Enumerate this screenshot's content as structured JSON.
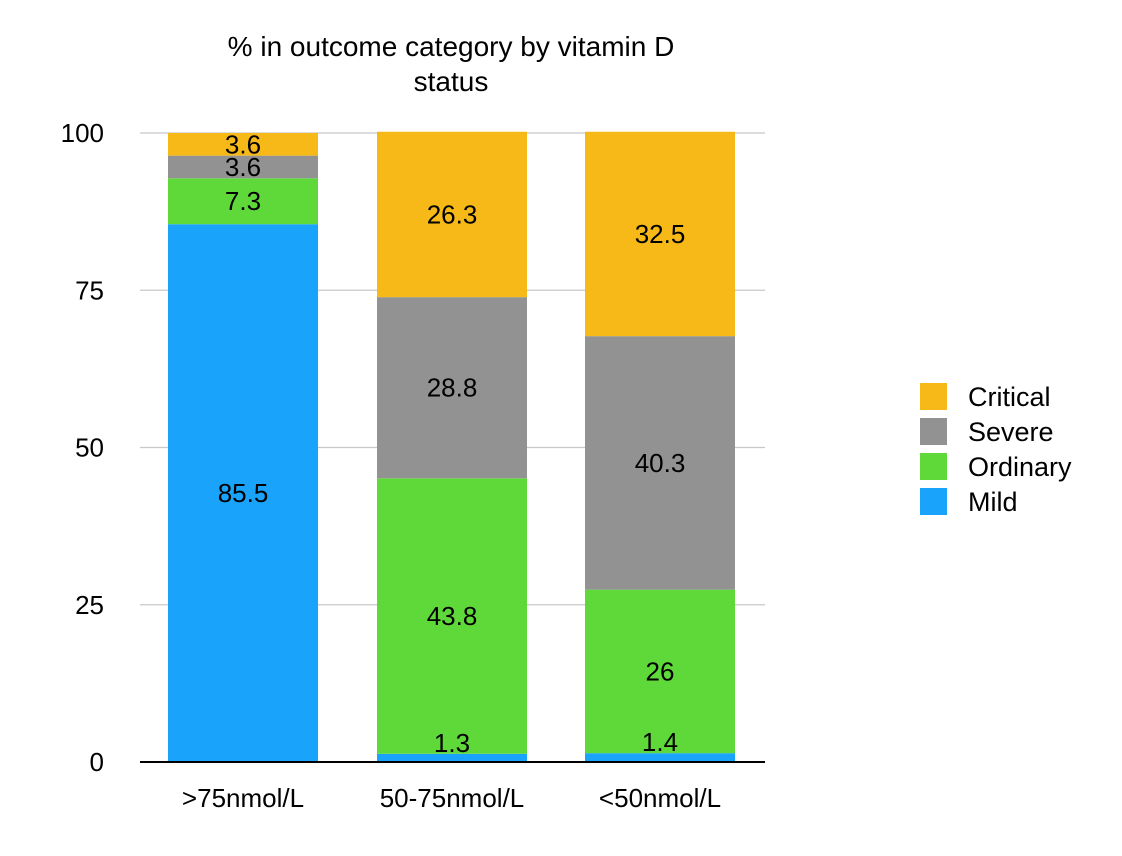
{
  "chart_data": {
    "type": "bar",
    "stacked": true,
    "title": "% in outcome category by vitamin D status",
    "title_lines": [
      "% in outcome category by vitamin D",
      "status"
    ],
    "categories": [
      ">75nmol/L",
      "50-75nmol/L",
      "<50nmol/L"
    ],
    "series": [
      {
        "name": "Mild",
        "color": "#1aa3fb",
        "values": [
          85.5,
          1.3,
          1.4
        ],
        "labels": [
          "85.5",
          "1.3",
          "1.4"
        ]
      },
      {
        "name": "Ordinary",
        "color": "#5fd93a",
        "values": [
          7.3,
          43.8,
          26
        ],
        "labels": [
          "7.3",
          "43.8",
          "26"
        ]
      },
      {
        "name": "Severe",
        "color": "#929292",
        "values": [
          3.6,
          28.8,
          40.3
        ],
        "labels": [
          "3.6",
          "28.8",
          "40.3"
        ]
      },
      {
        "name": "Critical",
        "color": "#f6b917",
        "values": [
          3.6,
          26.3,
          32.5
        ],
        "labels": [
          "3.6",
          "26.3",
          "32.5"
        ]
      }
    ],
    "legend_order": [
      "Critical",
      "Severe",
      "Ordinary",
      "Mild"
    ],
    "ylim": [
      0,
      100
    ],
    "yticks": [
      0,
      25,
      50,
      75,
      100
    ],
    "xlabel": "",
    "ylabel": "",
    "grid": true,
    "legend_position": "right"
  }
}
